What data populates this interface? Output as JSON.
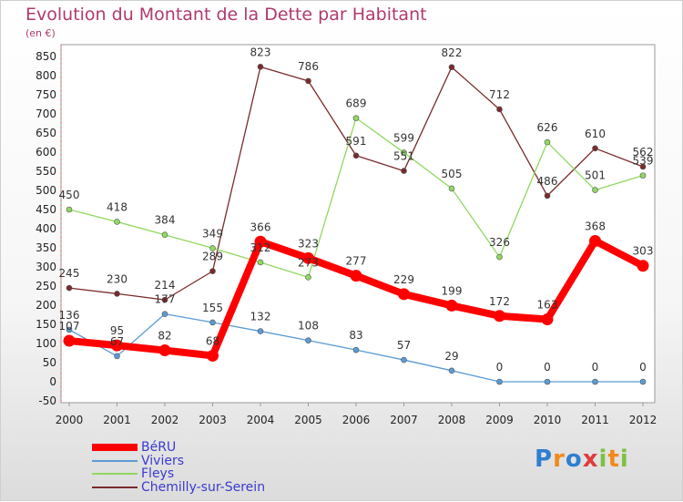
{
  "title": "Evolution du Montant de la Dette par Habitant",
  "subtitle": "(en €)",
  "logo": {
    "text": "Proxiti",
    "letters": [
      "P",
      "r",
      "o",
      "x",
      "i",
      "t",
      "i"
    ],
    "colors": [
      "#2f7fd0",
      "#f08a1c",
      "#2f7fd0",
      "#e23b3b",
      "#7cc242",
      "#f08a1c",
      "#7cc242"
    ]
  },
  "chart_data": {
    "type": "line",
    "x": [
      "2000",
      "2001",
      "2002",
      "2003",
      "2004",
      "2005",
      "2006",
      "2007",
      "2008",
      "2009",
      "2010",
      "2011",
      "2012"
    ],
    "ylim": [
      -50,
      850
    ],
    "yticks": [
      -50,
      0,
      50,
      100,
      150,
      200,
      250,
      300,
      350,
      400,
      450,
      500,
      550,
      600,
      650,
      700,
      750,
      800,
      850
    ],
    "grid": false,
    "legend_position": "bottom-left",
    "series": [
      {
        "name": "BéRU",
        "color": "#ff0000",
        "values": [
          107,
          95,
          82,
          68,
          366,
          323,
          277,
          229,
          199,
          172,
          163,
          368,
          303
        ],
        "labels": [
          "107",
          "95",
          "82",
          "68",
          "366",
          "323",
          "277",
          "229",
          "199",
          "172",
          "163",
          "368",
          "303"
        ]
      },
      {
        "name": "Viviers",
        "color": "#5b9bd5",
        "values": [
          136,
          67,
          177,
          155,
          132,
          108,
          83,
          57,
          29,
          0,
          0,
          0,
          0
        ],
        "labels": [
          "136",
          "67",
          "177",
          "155",
          "132",
          "108",
          "83",
          "57",
          "29",
          "0",
          "0",
          "0",
          "0"
        ]
      },
      {
        "name": "Fleys",
        "color": "#90d860",
        "values": [
          450,
          418,
          384,
          349,
          312,
          273,
          689,
          599,
          505,
          326,
          626,
          501,
          539
        ],
        "labels": [
          "450",
          "418",
          "384",
          "349",
          "312",
          "273",
          "689",
          "599",
          "505",
          "326",
          "626",
          "501",
          "539"
        ]
      },
      {
        "name": "Chemilly-sur-Serein",
        "color": "#7a2a2a",
        "values": [
          245,
          230,
          214,
          289,
          823,
          786,
          591,
          551,
          822,
          712,
          486,
          610,
          562
        ],
        "labels": [
          "245",
          "230",
          "214",
          "289",
          "823",
          "786",
          "591",
          "551",
          "822",
          "712",
          "486",
          "610",
          "562"
        ]
      }
    ]
  }
}
